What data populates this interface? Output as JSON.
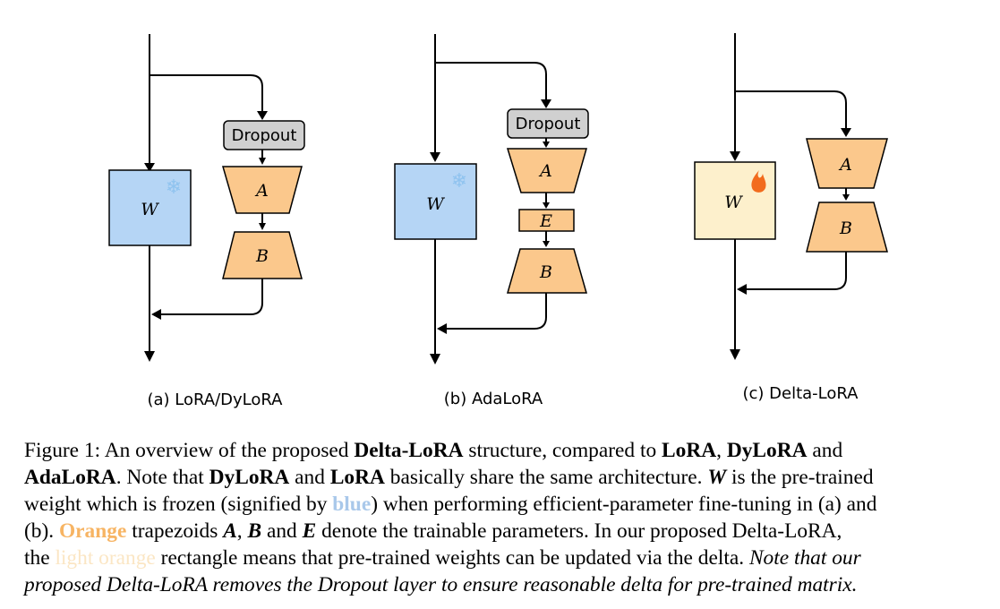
{
  "figure": {
    "panels": [
      {
        "caption": "(a) LoRA/DyLoRA",
        "weight_label": "W",
        "dropout_label": "Dropout",
        "nodes": [
          "A",
          "B"
        ]
      },
      {
        "caption": "(b) AdaLoRA",
        "weight_label": "W",
        "dropout_label": "Dropout",
        "nodes": [
          "A",
          "E",
          "B"
        ]
      },
      {
        "caption": "(c) Delta-LoRA",
        "weight_label": "W",
        "nodes": [
          "A",
          "B"
        ]
      }
    ],
    "icons": {
      "frozen": "snowflake-icon",
      "updated": "flame-icon"
    },
    "colors": {
      "frozen_fill": "#b5d5f5",
      "trainable_fill": "#fbc88c",
      "updated_fill": "#fdf0cc",
      "dropout_fill": "#d0d0d0",
      "snowflake": "#8fc3ef",
      "flame": "#f26b1d"
    }
  },
  "caption": {
    "label": "Figure 1:",
    "segments": {
      "s1": "An overview of the proposed",
      "s2": "Delta-LoRA",
      "s3": "structure, compared to",
      "s4": "LoRA",
      "s5": ",",
      "s6": "DyLoRA",
      "s7": "and",
      "s8": "AdaLoRA",
      "s9": ". Note that",
      "s10": "DyLoRA",
      "s11": "and",
      "s12": "LoRA",
      "s13": "basically share the same architecture.",
      "s14": "W",
      "s15": "is the pre-trained",
      "s16": "weight which is frozen (signified by",
      "s17": "blue",
      "s18": ") when performing efficient-parameter fine-tuning in (a) and",
      "s19": "(b).",
      "s20": "Orange",
      "s21": "trapezoids",
      "s22": "A",
      "s23": ",",
      "s24": "B",
      "s25": "and",
      "s26": "E",
      "s27": "denote the trainable parameters. In our proposed Delta-LoRA,",
      "s28": "the",
      "s29": "light orange",
      "s30": "rectangle means that pre-trained weights can be updated via the delta.",
      "s31": "Note that our",
      "s32": "proposed Delta-LoRA removes the Dropout layer to ensure reasonable delta for pre-trained matrix."
    }
  }
}
